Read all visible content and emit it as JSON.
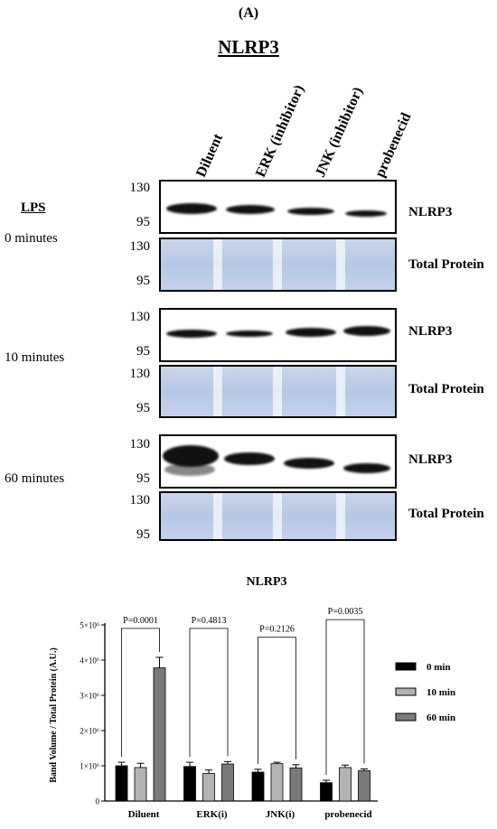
{
  "panel_label": "(A)",
  "title": "NLRP3",
  "lanes": [
    "Diluent",
    "ERK (inhibitor)",
    "JNK (inhibitor)",
    "probenecid"
  ],
  "lps_label": "LPS",
  "mw_markers": [
    "130",
    "95"
  ],
  "blot_labels": {
    "target": "NLRP3",
    "loading": "Total Protein"
  },
  "timepoints": [
    "0 minutes",
    "10 minutes",
    "60 minutes"
  ],
  "chart_data": {
    "type": "bar",
    "title": "NLRP3",
    "ylabel": "Band Volume / Total Protein (A.U.)",
    "xlabel": "",
    "categories": [
      "Diluent",
      "ERK(i)",
      "JNK(i)",
      "probenecid"
    ],
    "ylim": [
      0,
      5000000
    ],
    "yticks": [
      "0",
      "1×10⁶",
      "2×10⁶",
      "3×10⁶",
      "4×10⁶",
      "5×10⁶"
    ],
    "series": [
      {
        "name": "0 min",
        "color": "#000000",
        "values": [
          1000000,
          980000,
          820000,
          520000
        ],
        "errors": [
          100000,
          120000,
          80000,
          70000
        ]
      },
      {
        "name": "10 min",
        "color": "#b3b3b3",
        "values": [
          950000,
          780000,
          1060000,
          950000
        ],
        "errors": [
          120000,
          100000,
          40000,
          70000
        ]
      },
      {
        "name": "60 min",
        "color": "#7a7a7a",
        "values": [
          3780000,
          1050000,
          940000,
          860000
        ],
        "errors": [
          300000,
          70000,
          90000,
          50000
        ]
      }
    ],
    "pvalues": [
      "P=0.0001",
      "P=0.4813",
      "P=0.2126",
      "P=0.0035"
    ],
    "legend_position": "right"
  }
}
